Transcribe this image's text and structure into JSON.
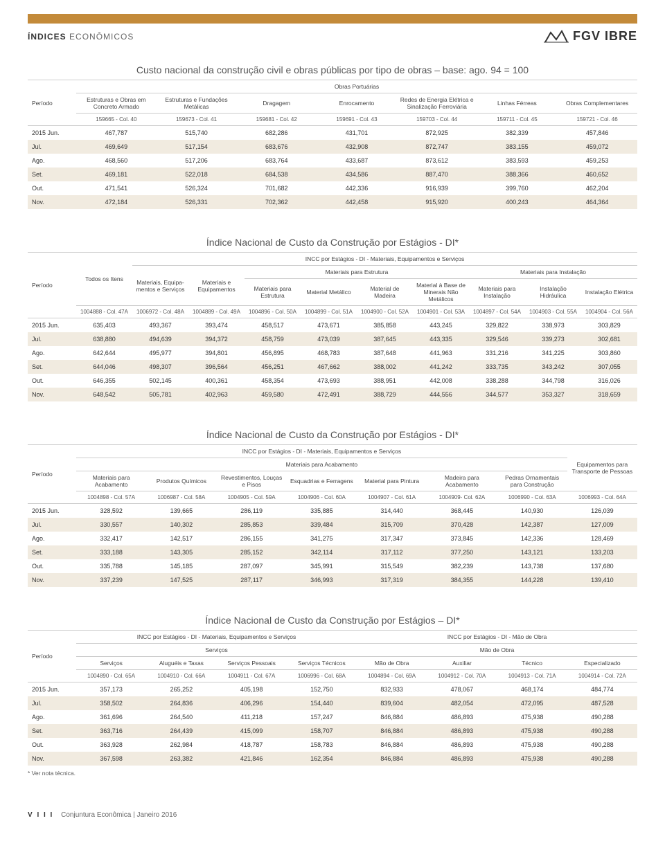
{
  "header": {
    "bold": "ÍNDICES",
    "thin": " ECONÔMICOS",
    "brand": "FGV IBRE"
  },
  "colors": {
    "accent": "#c38a3a",
    "altRow": "#f1ebe0",
    "border": "#cccccc"
  },
  "table1": {
    "title": "Custo nacional da construção civil e obras públicas por tipo de obras – base: ago. 94 = 100",
    "grouptop": "Obras Portuárias",
    "periodo": "Período",
    "cols": [
      "Estruturas e Obras em Concreto Armado",
      "Estruturas e Fundações Metálicas",
      "Dragagem",
      "Enrocamento",
      "Redes de Energia Elétrica e Sinalização Ferroviária",
      "Linhas Férreas",
      "Obras Complementares"
    ],
    "codes": [
      "159665 - Col. 40",
      "159673 - Col. 41",
      "159681 - Col. 42",
      "159691 - Col. 43",
      "159703 - Col. 44",
      "159711 - Col. 45",
      "159721 - Col. 46"
    ],
    "rows": [
      {
        "p": "2015  Jun.",
        "v": [
          "467,787",
          "515,740",
          "682,286",
          "431,701",
          "872,925",
          "382,339",
          "457,846"
        ]
      },
      {
        "p": "Jul.",
        "v": [
          "469,649",
          "517,154",
          "683,676",
          "432,908",
          "872,747",
          "383,155",
          "459,072"
        ]
      },
      {
        "p": "Ago.",
        "v": [
          "468,560",
          "517,206",
          "683,764",
          "433,687",
          "873,612",
          "383,593",
          "459,253"
        ]
      },
      {
        "p": "Set.",
        "v": [
          "469,181",
          "522,018",
          "684,538",
          "434,586",
          "887,470",
          "388,366",
          "460,652"
        ]
      },
      {
        "p": "Out.",
        "v": [
          "471,541",
          "526,324",
          "701,682",
          "442,336",
          "916,939",
          "399,760",
          "462,204"
        ]
      },
      {
        "p": "Nov.",
        "v": [
          "472,184",
          "526,331",
          "702,362",
          "442,458",
          "915,920",
          "400,243",
          "464,364"
        ]
      }
    ]
  },
  "table2": {
    "title": "Índice Nacional de Custo da Construção por Estágios - DI*",
    "sub": "INCC por Estágios - DI - Materiais, Equipamentos e Serviços",
    "periodo": "Período",
    "todos": "Todos os Itens",
    "matEquip": "Materiais, Equipa-mentos e Serviços",
    "matEq": "Materiais e Equipamentos",
    "grpEstr": "Materiais para Estrutura",
    "grpInst": "Materiais para Instalação",
    "subcols": [
      "Materiais para Estrutura",
      "Material Metálico",
      "Material de Madeira",
      "Material à Base de Minerais Não Metálicos",
      "Materiais para Instalação",
      "Instalação Hidráulica",
      "Instalação Elétrica"
    ],
    "codes": [
      "1004888 - Col. 47A",
      "1006972 - Col. 48A",
      "1004889 - Col. 49A",
      "1004896 - Col. 50A",
      "1004899 - Col. 51A",
      "1004900 - Col. 52A",
      "1004901 - Col. 53A",
      "1004897 - Col. 54A",
      "1004903 - Col. 55A",
      "1004904 - Col. 56A"
    ],
    "rows": [
      {
        "p": "2015  Jun.",
        "v": [
          "635,403",
          "493,367",
          "393,474",
          "458,517",
          "473,671",
          "385,858",
          "443,245",
          "329,822",
          "338,973",
          "303,829"
        ]
      },
      {
        "p": "Jul.",
        "v": [
          "638,880",
          "494,639",
          "394,372",
          "458,759",
          "473,039",
          "387,645",
          "443,335",
          "329,546",
          "339,273",
          "302,681"
        ]
      },
      {
        "p": "Ago.",
        "v": [
          "642,644",
          "495,977",
          "394,801",
          "456,895",
          "468,783",
          "387,648",
          "441,963",
          "331,216",
          "341,225",
          "303,860"
        ]
      },
      {
        "p": "Set.",
        "v": [
          "644,046",
          "498,307",
          "396,564",
          "456,251",
          "467,662",
          "388,002",
          "441,242",
          "333,735",
          "343,242",
          "307,055"
        ]
      },
      {
        "p": "Out.",
        "v": [
          "646,355",
          "502,145",
          "400,361",
          "458,354",
          "473,693",
          "388,951",
          "442,008",
          "338,288",
          "344,798",
          "316,026"
        ]
      },
      {
        "p": "Nov.",
        "v": [
          "648,542",
          "505,781",
          "402,963",
          "459,580",
          "472,491",
          "388,729",
          "444,556",
          "344,577",
          "353,327",
          "318,659"
        ]
      }
    ]
  },
  "table3": {
    "title": "Índice Nacional de Custo da Construção por Estágios - DI*",
    "sub": "INCC por Estágios - DI - Materiais, Equipamentos e Serviços",
    "grp": "Materiais para Acabamento",
    "periodo": "Período",
    "lastcol": "Equipamentos para Transporte de Pessoas",
    "cols": [
      "Materiais para Acabamento",
      "Produtos Químicos",
      "Revestimentos, Louças e Pisos",
      "Esquadrias e Ferragens",
      "Material para Pintura",
      "Madeira para Acabamento",
      "Pedras Ornamentais para Construção"
    ],
    "codes": [
      "1004898 - Col. 57A",
      "1006987 - Col. 58A",
      "1004905 - Col. 59A",
      "1004906 - Col. 60A",
      "1004907 - Col. 61A",
      "1004909- Col. 62A",
      "1006990 - Col. 63A",
      "1006993 - Col. 64A"
    ],
    "rows": [
      {
        "p": "2015  Jun.",
        "v": [
          "328,592",
          "139,665",
          "286,119",
          "335,885",
          "314,440",
          "368,445",
          "140,930",
          "126,039"
        ]
      },
      {
        "p": "Jul.",
        "v": [
          "330,557",
          "140,302",
          "285,853",
          "339,484",
          "315,709",
          "370,428",
          "142,387",
          "127,009"
        ]
      },
      {
        "p": "Ago.",
        "v": [
          "332,417",
          "142,517",
          "286,155",
          "341,275",
          "317,347",
          "373,845",
          "142,336",
          "128,469"
        ]
      },
      {
        "p": "Set.",
        "v": [
          "333,188",
          "143,305",
          "285,152",
          "342,114",
          "317,112",
          "377,250",
          "143,121",
          "133,203"
        ]
      },
      {
        "p": "Out.",
        "v": [
          "335,788",
          "145,185",
          "287,097",
          "345,991",
          "315,549",
          "382,239",
          "143,738",
          "137,680"
        ]
      },
      {
        "p": "Nov.",
        "v": [
          "337,239",
          "147,525",
          "287,117",
          "346,993",
          "317,319",
          "384,355",
          "144,228",
          "139,410"
        ]
      }
    ]
  },
  "table4": {
    "title": "Índice Nacional de Custo da Construção por Estágios – DI*",
    "sub1": "INCC por Estágios - DI - Materiais, Equipamentos e Serviços",
    "sub2": "INCC por Estágios - DI - Mão de Obra",
    "grpServ": "Serviços",
    "grpMao": "Mão de Obra",
    "periodo": "Período",
    "cols": [
      "Serviços",
      "Aluguéis e Taxas",
      "Serviços Pessoais",
      "Serviços Técnicos",
      "Mão de Obra",
      "Auxiliar",
      "Técnico",
      "Especializado"
    ],
    "codes": [
      "1004890 - Col. 65A",
      "1004910 - Col. 66A",
      "1004911 - Col. 67A",
      "1006996 - Col. 68A",
      "1004894 - Col. 69A",
      "1004912 - Col. 70A",
      "1004913 - Col. 71A",
      "1004914 - Col. 72A"
    ],
    "rows": [
      {
        "p": "2015  Jun.",
        "v": [
          "357,173",
          "265,252",
          "405,198",
          "152,750",
          "832,933",
          "478,067",
          "468,174",
          "484,774"
        ]
      },
      {
        "p": "Jul.",
        "v": [
          "358,502",
          "264,836",
          "406,296",
          "154,440",
          "839,604",
          "482,054",
          "472,095",
          "487,528"
        ]
      },
      {
        "p": "Ago.",
        "v": [
          "361,696",
          "264,540",
          "411,218",
          "157,247",
          "846,884",
          "486,893",
          "475,938",
          "490,288"
        ]
      },
      {
        "p": "Set.",
        "v": [
          "363,716",
          "264,439",
          "415,099",
          "158,707",
          "846,884",
          "486,893",
          "475,938",
          "490,288"
        ]
      },
      {
        "p": "Out.",
        "v": [
          "363,928",
          "262,984",
          "418,787",
          "158,783",
          "846,884",
          "486,893",
          "475,938",
          "490,288"
        ]
      },
      {
        "p": "Nov.",
        "v": [
          "367,598",
          "263,382",
          "421,846",
          "162,354",
          "846,884",
          "486,893",
          "475,938",
          "490,288"
        ]
      }
    ],
    "note": "* Ver nota técnica."
  },
  "footer": {
    "page": "V I I I",
    "text": "Conjuntura Econômica  |  Janeiro 2016"
  }
}
